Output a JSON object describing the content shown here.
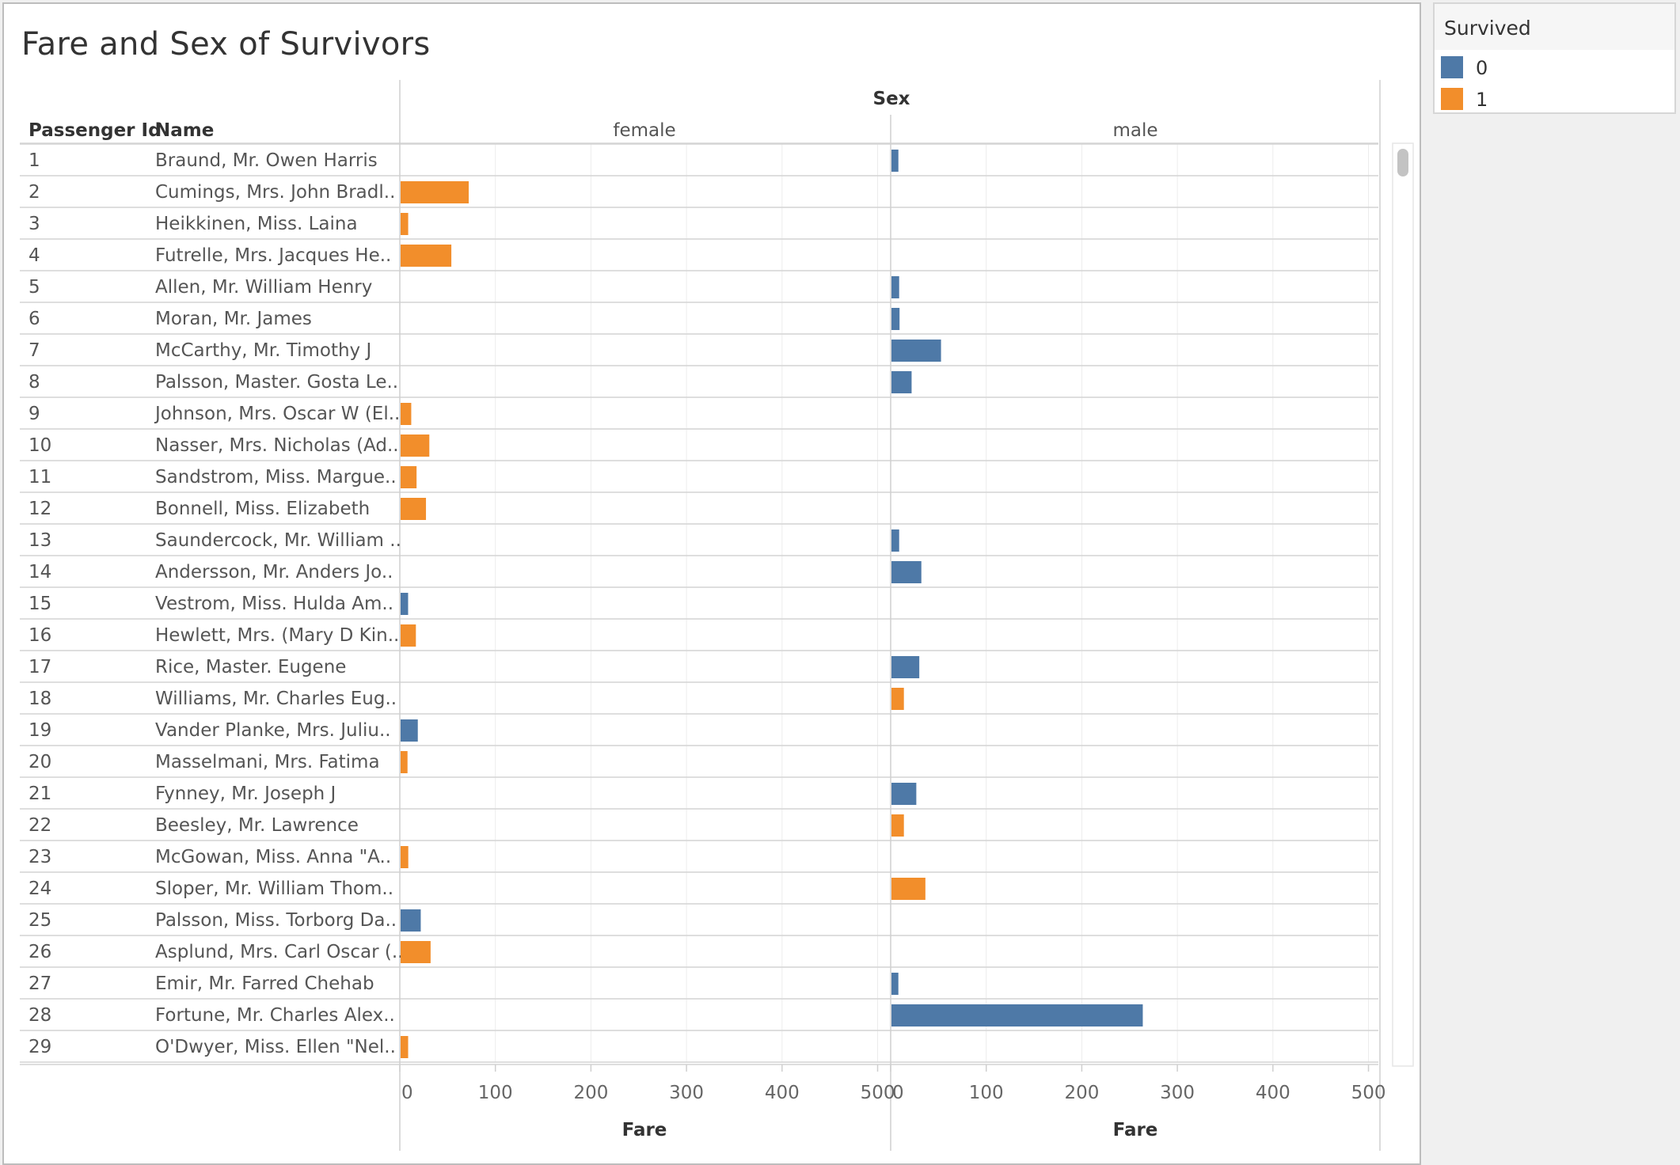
{
  "title": "Fare and Sex of Survivors",
  "legend": {
    "title": "Survived",
    "items": [
      {
        "label": "0",
        "color": "#4e79a7"
      },
      {
        "label": "1",
        "color": "#f28e2b"
      }
    ]
  },
  "chart_data": {
    "type": "bar",
    "orientation": "horizontal",
    "row_headers": [
      "Passenger Id",
      "Name"
    ],
    "facet_title": "Sex",
    "facets": [
      "female",
      "male"
    ],
    "xlabel": "Fare",
    "xlim": [
      0,
      512
    ],
    "xticks": [
      0,
      100,
      200,
      300,
      400,
      500
    ],
    "grid": true,
    "legend_position": "top-right",
    "series": [
      {
        "name": "0",
        "color": "#4e79a7"
      },
      {
        "name": "1",
        "color": "#f28e2b"
      }
    ],
    "rows": [
      {
        "id": "1",
        "name": "Braund, Mr. Owen Harris",
        "sex": "male",
        "survived": "0",
        "fare": 7.25
      },
      {
        "id": "2",
        "name": "Cumings, Mrs. John Bradl..",
        "sex": "female",
        "survived": "1",
        "fare": 71.28
      },
      {
        "id": "3",
        "name": "Heikkinen, Miss. Laina",
        "sex": "female",
        "survived": "1",
        "fare": 7.93
      },
      {
        "id": "4",
        "name": "Futrelle, Mrs. Jacques He..",
        "sex": "female",
        "survived": "1",
        "fare": 53.1
      },
      {
        "id": "5",
        "name": "Allen, Mr. William Henry",
        "sex": "male",
        "survived": "0",
        "fare": 8.05
      },
      {
        "id": "6",
        "name": "Moran, Mr. James",
        "sex": "male",
        "survived": "0",
        "fare": 8.46
      },
      {
        "id": "7",
        "name": "McCarthy, Mr. Timothy J",
        "sex": "male",
        "survived": "0",
        "fare": 51.86
      },
      {
        "id": "8",
        "name": "Palsson, Master. Gosta Le..",
        "sex": "male",
        "survived": "0",
        "fare": 21.08
      },
      {
        "id": "9",
        "name": "Johnson, Mrs. Oscar W (El..",
        "sex": "female",
        "survived": "1",
        "fare": 11.13
      },
      {
        "id": "10",
        "name": "Nasser, Mrs. Nicholas (Ad..",
        "sex": "female",
        "survived": "1",
        "fare": 30.07
      },
      {
        "id": "11",
        "name": "Sandstrom, Miss. Margue..",
        "sex": "female",
        "survived": "1",
        "fare": 16.7
      },
      {
        "id": "12",
        "name": "Bonnell, Miss. Elizabeth",
        "sex": "female",
        "survived": "1",
        "fare": 26.55
      },
      {
        "id": "13",
        "name": "Saundercock, Mr. William ..",
        "sex": "male",
        "survived": "0",
        "fare": 8.05
      },
      {
        "id": "14",
        "name": "Andersson, Mr. Anders Jo..",
        "sex": "male",
        "survived": "0",
        "fare": 31.28
      },
      {
        "id": "15",
        "name": "Vestrom, Miss. Hulda Am..",
        "sex": "female",
        "survived": "0",
        "fare": 7.85
      },
      {
        "id": "16",
        "name": "Hewlett, Mrs. (Mary D Kin..",
        "sex": "female",
        "survived": "1",
        "fare": 16.0
      },
      {
        "id": "17",
        "name": "Rice, Master. Eugene",
        "sex": "male",
        "survived": "0",
        "fare": 29.13
      },
      {
        "id": "18",
        "name": "Williams, Mr. Charles Eug..",
        "sex": "male",
        "survived": "1",
        "fare": 13.0
      },
      {
        "id": "19",
        "name": "Vander Planke, Mrs. Juliu..",
        "sex": "female",
        "survived": "0",
        "fare": 18.0
      },
      {
        "id": "20",
        "name": "Masselmani, Mrs. Fatima",
        "sex": "female",
        "survived": "1",
        "fare": 7.23
      },
      {
        "id": "21",
        "name": "Fynney, Mr. Joseph J",
        "sex": "male",
        "survived": "0",
        "fare": 26.0
      },
      {
        "id": "22",
        "name": "Beesley, Mr. Lawrence",
        "sex": "male",
        "survived": "1",
        "fare": 13.0
      },
      {
        "id": "23",
        "name": "McGowan, Miss. Anna \"A..",
        "sex": "female",
        "survived": "1",
        "fare": 8.03
      },
      {
        "id": "24",
        "name": "Sloper, Mr. William Thom..",
        "sex": "male",
        "survived": "1",
        "fare": 35.5
      },
      {
        "id": "25",
        "name": "Palsson, Miss. Torborg Da..",
        "sex": "female",
        "survived": "0",
        "fare": 21.08
      },
      {
        "id": "26",
        "name": "Asplund, Mrs. Carl Oscar (..",
        "sex": "female",
        "survived": "1",
        "fare": 31.39
      },
      {
        "id": "27",
        "name": "Emir, Mr. Farred Chehab",
        "sex": "male",
        "survived": "0",
        "fare": 7.23
      },
      {
        "id": "28",
        "name": "Fortune, Mr. Charles Alex..",
        "sex": "male",
        "survived": "0",
        "fare": 263.0
      },
      {
        "id": "29",
        "name": "O'Dwyer, Miss. Ellen \"Nel..",
        "sex": "female",
        "survived": "1",
        "fare": 7.88
      }
    ]
  }
}
